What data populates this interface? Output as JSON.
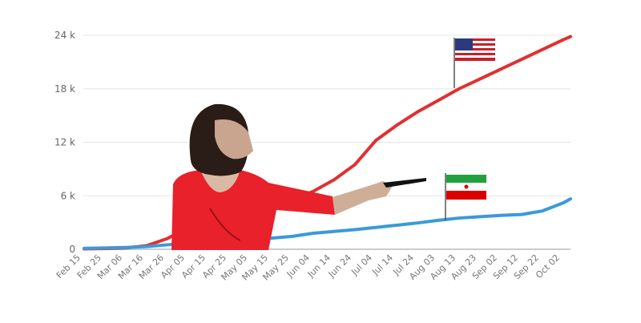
{
  "chart_data": {
    "type": "line",
    "title": "",
    "xlabel": "",
    "ylabel": "",
    "ylim": [
      0,
      24000
    ],
    "grid": true,
    "yticks": [
      "0",
      "6 k",
      "12 k",
      "18 k",
      "24 k"
    ],
    "ytick_values": [
      0,
      6000,
      12000,
      18000,
      24000
    ],
    "categories": [
      "Feb 15",
      "Feb 25",
      "Mar 06",
      "Mar 16",
      "Mar 26",
      "Apr 05",
      "Apr 15",
      "Apr 25",
      "May 05",
      "May 15",
      "May 25",
      "Jun 04",
      "Jun 14",
      "Jun 24",
      "Jul 04",
      "Jul 14",
      "Jul 24",
      "Aug 03",
      "Aug 13",
      "Aug 23",
      "Sep 02",
      "Sep 12",
      "Sep 22",
      "Oct 02"
    ],
    "series": [
      {
        "name": "United States",
        "flag": "us-flag",
        "color": "#e03030",
        "values": [
          50,
          80,
          150,
          400,
          1200,
          2500,
          3300,
          3900,
          4400,
          4900,
          5500,
          6500,
          7800,
          9500,
          12200,
          13900,
          15400,
          16700,
          18000,
          19100,
          20200,
          21300,
          22400,
          23500
        ]
      },
      {
        "name": "Iran",
        "flag": "iran-flag",
        "color": "#3a9ad9",
        "values": [
          100,
          150,
          200,
          300,
          500,
          700,
          850,
          1000,
          1100,
          1250,
          1450,
          1800,
          2000,
          2200,
          2450,
          2700,
          2950,
          3250,
          3500,
          3650,
          3800,
          3900,
          4300,
          5200
        ]
      }
    ]
  }
}
